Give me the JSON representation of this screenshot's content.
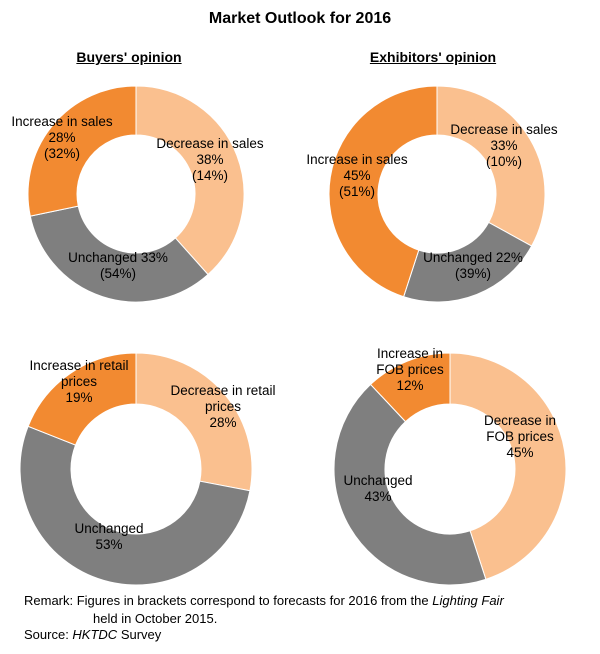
{
  "title": "Market Outlook for 2016",
  "headers": {
    "buyers": "Buyers' opinion",
    "exhibitors": "Exhibitors' opinion"
  },
  "colors": {
    "increase": "#F28A31",
    "decrease": "#FAC08F",
    "unchanged": "#7F7F7F"
  },
  "chart_data": [
    {
      "type": "pie",
      "group": "Buyers' opinion",
      "slices": [
        {
          "key": "decrease",
          "label": "Decrease in sales",
          "value": 38,
          "prev": 14
        },
        {
          "key": "unchanged",
          "label": "Unchanged",
          "value": 33,
          "prev": 54
        },
        {
          "key": "increase",
          "label": "Increase in sales",
          "value": 28,
          "prev": 32
        }
      ]
    },
    {
      "type": "pie",
      "group": "Exhibitors' opinion",
      "slices": [
        {
          "key": "decrease",
          "label": "Decrease in sales",
          "value": 33,
          "prev": 10
        },
        {
          "key": "unchanged",
          "label": "Unchanged",
          "value": 22,
          "prev": 39
        },
        {
          "key": "increase",
          "label": "Increase in sales",
          "value": 45,
          "prev": 51
        }
      ]
    },
    {
      "type": "pie",
      "group": "Buyers' opinion",
      "slices": [
        {
          "key": "decrease",
          "label": "Decrease in retail prices",
          "value": 28
        },
        {
          "key": "unchanged",
          "label": "Unchanged",
          "value": 53
        },
        {
          "key": "increase",
          "label": "Increase in retail prices",
          "value": 19
        }
      ]
    },
    {
      "type": "pie",
      "group": "Exhibitors' opinion",
      "slices": [
        {
          "key": "decrease",
          "label": "Decrease in FOB prices",
          "value": 45
        },
        {
          "key": "unchanged",
          "label": "Unchanged",
          "value": 43
        },
        {
          "key": "increase",
          "label": "Increase in FOB prices",
          "value": 12
        }
      ]
    }
  ],
  "remark": {
    "prefix": "Remark: Figures in brackets correspond to forecasts for 2016 from the ",
    "fair_name": "Lighting Fair",
    "line2": "held in October 2015."
  },
  "source": {
    "prefix": "Source: ",
    "name": "HKTDC",
    "suffix": " Survey"
  }
}
